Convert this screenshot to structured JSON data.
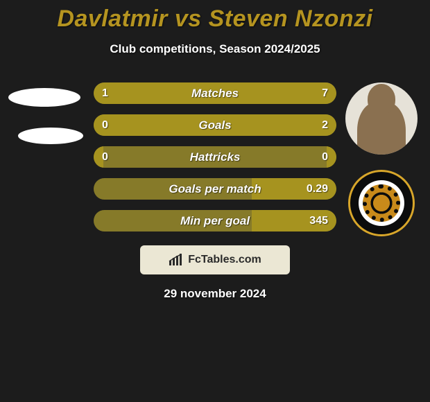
{
  "title": "Davlatmir vs Steven Nzonzi",
  "title_color": "#b59420",
  "subtitle": "Club competitions, Season 2024/2025",
  "date": "29 november 2024",
  "branding": {
    "text": "FcTables.com",
    "background": "#ebe7d4",
    "text_color": "#2a2a2a"
  },
  "colors": {
    "bar_left": "#a6931f",
    "bar_right": "#a6931f",
    "bar_bg": "#867a29"
  },
  "stats": [
    {
      "label": "Matches",
      "left_val": "1",
      "right_val": "7",
      "left_pct": 12.5,
      "right_pct": 87.5
    },
    {
      "label": "Goals",
      "left_val": "0",
      "right_val": "2",
      "left_pct": 4,
      "right_pct": 96
    },
    {
      "label": "Hattricks",
      "left_val": "0",
      "right_val": "0",
      "left_pct": 4,
      "right_pct": 4
    },
    {
      "label": "Goals per match",
      "left_val": "",
      "right_val": "0.29",
      "left_pct": 0,
      "right_pct": 35
    },
    {
      "label": "Min per goal",
      "left_val": "",
      "right_val": "345",
      "left_pct": 0,
      "right_pct": 35
    }
  ]
}
